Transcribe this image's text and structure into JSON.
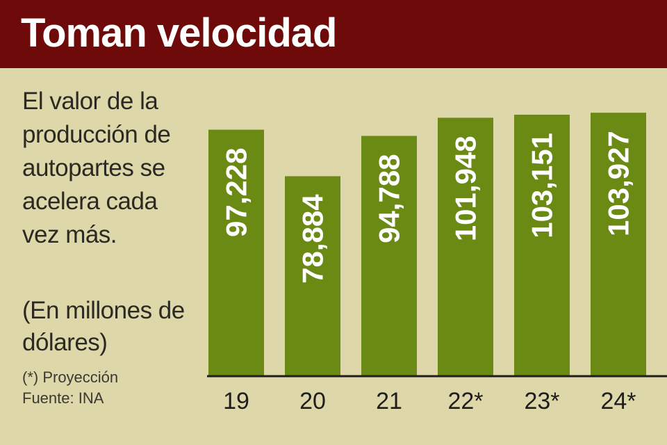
{
  "header": {
    "title": "Toman velocidad"
  },
  "description": "El valor de la producción de autopartes se acelera cada vez más.",
  "units_note": "(En millones de dólares)",
  "footnote": "(*) Proyección",
  "source": "Fuente: INA",
  "colors": {
    "header_bg": "#6e0a0a",
    "background": "#ddd7a9",
    "bar": "#6b8a14",
    "bar_label": "#ffffff",
    "axis": "#1e1e1e"
  },
  "chart_data": {
    "type": "bar",
    "title": "Toman velocidad",
    "xlabel": "",
    "ylabel": "",
    "categories": [
      "19",
      "20",
      "21",
      "22*",
      "23*",
      "24*"
    ],
    "values": [
      97228,
      78884,
      94788,
      101948,
      103151,
      103927
    ],
    "value_labels": [
      "97,228",
      "78,884",
      "94,788",
      "101,948",
      "103,151",
      "103,927"
    ],
    "ylim": [
      0,
      110000
    ],
    "grid": false,
    "legend": "none"
  }
}
